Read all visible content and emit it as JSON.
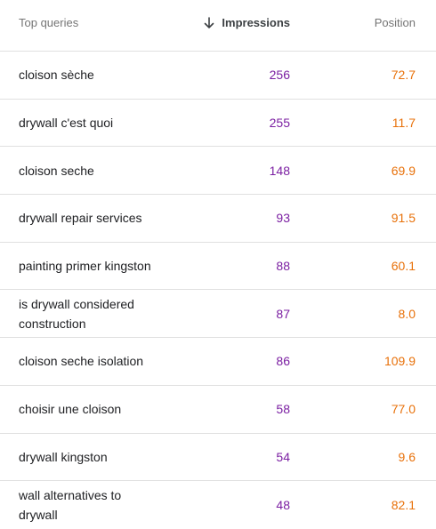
{
  "colors": {
    "impressions": "#7b1fa2",
    "position": "#e8710a",
    "divider": "#e0e0e0",
    "header_text": "#757575"
  },
  "header": {
    "query_label": "Top queries",
    "impressions_label": "Impressions",
    "position_label": "Position",
    "sort_icon": "arrow-down-icon"
  },
  "rows": [
    {
      "query": "cloison sèche",
      "impressions": "256",
      "position": "72.7"
    },
    {
      "query": "drywall c'est quoi",
      "impressions": "255",
      "position": "11.7"
    },
    {
      "query": "cloison seche",
      "impressions": "148",
      "position": "69.9"
    },
    {
      "query": "drywall repair services",
      "impressions": "93",
      "position": "91.5"
    },
    {
      "query": "painting primer kingston",
      "impressions": "88",
      "position": "60.1"
    },
    {
      "query": "is drywall considered construction",
      "impressions": "87",
      "position": "8.0"
    },
    {
      "query": "cloison seche isolation",
      "impressions": "86",
      "position": "109.9"
    },
    {
      "query": "choisir une cloison",
      "impressions": "58",
      "position": "77.0"
    },
    {
      "query": "drywall kingston",
      "impressions": "54",
      "position": "9.6"
    },
    {
      "query": "wall alternatives to drywall",
      "impressions": "48",
      "position": "82.1"
    }
  ]
}
